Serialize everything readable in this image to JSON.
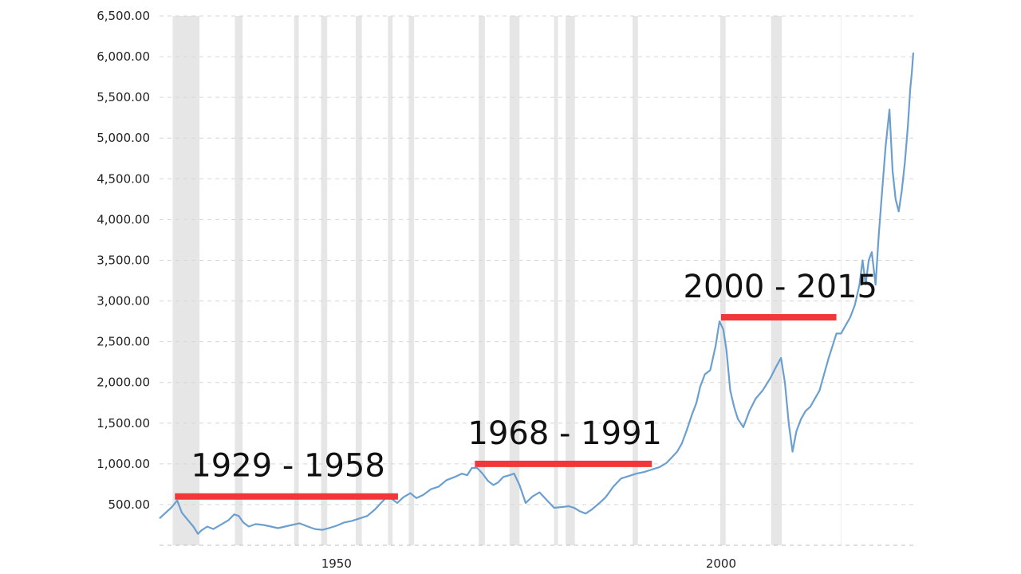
{
  "chart_data": {
    "type": "line",
    "title": "",
    "xlabel": "",
    "ylabel": "",
    "xlim": [
      1927,
      2025
    ],
    "ylim": [
      0,
      6500
    ],
    "y_ticks": [
      500,
      1000,
      1500,
      2000,
      2500,
      3000,
      3500,
      4000,
      4500,
      5000,
      5500,
      6000,
      6500
    ],
    "y_tick_labels": [
      "500.00",
      "1,000.00",
      "1,500.00",
      "2,000.00",
      "2,500.00",
      "3,000.00",
      "3,500.00",
      "4,000.00",
      "4,500.00",
      "5,000.00",
      "5,500.00",
      "6,000.00",
      "6,500.00"
    ],
    "x_ticks": [
      1950,
      2000
    ],
    "x_tick_labels": [
      "1950",
      "2000"
    ],
    "grid": true,
    "legend": "none",
    "line_color": "#6a9fd0",
    "recession_band_color": "#e6e6e6",
    "annotation_color": "#f0383a",
    "recessions": [
      [
        1928.7,
        1932.2
      ],
      [
        1936.8,
        1937.8
      ],
      [
        1944.5,
        1945.1
      ],
      [
        1948.0,
        1948.8
      ],
      [
        1952.5,
        1953.3
      ],
      [
        1956.7,
        1957.3
      ],
      [
        1959.4,
        1960.1
      ],
      [
        1968.5,
        1969.3
      ],
      [
        1972.5,
        1973.8
      ],
      [
        1978.3,
        1978.8
      ],
      [
        1979.8,
        1981.0
      ],
      [
        1988.5,
        1989.2
      ],
      [
        1999.9,
        2000.6
      ],
      [
        2006.5,
        2007.9
      ]
    ],
    "series": [
      {
        "x": [
          1927.0,
          1927.8,
          1928.5,
          1929.3,
          1929.9,
          1930.6,
          1931.4,
          1932.0,
          1932.4,
          1933.2,
          1934.0,
          1935.1,
          1936.0,
          1936.7,
          1937.3,
          1937.9,
          1938.6,
          1939.5,
          1940.5,
          1941.5,
          1942.4,
          1943.3,
          1944.2,
          1945.2,
          1946.3,
          1947.2,
          1948.2,
          1949.0,
          1950.0,
          1951.0,
          1952.0,
          1953.0,
          1954.0,
          1955.0,
          1955.8,
          1956.5,
          1957.2,
          1957.9,
          1958.7,
          1959.6,
          1960.4,
          1961.3,
          1962.3,
          1963.3,
          1964.3,
          1965.4,
          1966.3,
          1967.0,
          1967.6,
          1968.3,
          1969.0,
          1969.7,
          1970.4,
          1971.0,
          1971.7,
          1972.5,
          1973.1,
          1973.8,
          1974.6,
          1975.5,
          1976.4,
          1977.3,
          1978.3,
          1979.3,
          1980.2,
          1980.9,
          1981.6,
          1982.4,
          1983.2,
          1984.2,
          1985.0,
          1986.0,
          1987.0,
          1988.0,
          1989.0,
          1990.0,
          1991.0,
          1992.0,
          1992.9,
          1993.6,
          1994.3,
          1994.9,
          1995.5,
          1996.2,
          1996.8,
          1997.3,
          1997.9,
          1998.6,
          1999.3,
          1999.8,
          2000.3,
          2000.7,
          2001.2,
          2001.7,
          2002.2,
          2002.9,
          2003.7,
          2004.5,
          2005.4,
          2006.4,
          2007.2,
          2007.8,
          2008.3,
          2008.8,
          2009.3,
          2009.8,
          2010.4,
          2011.0,
          2011.6,
          2012.2,
          2012.8,
          2013.4,
          2014.0,
          2014.5,
          2015.0,
          2015.6,
          2016.2,
          2016.8,
          2017.4,
          2018.0,
          2018.4,
          2018.8,
          2019.2,
          2019.6,
          2020.1,
          2020.5,
          2020.9,
          2021.4,
          2021.9,
          2022.3,
          2022.7,
          2023.1,
          2023.5,
          2023.9,
          2024.3,
          2024.6,
          2024.8,
          2025.0
        ],
        "y": [
          330,
          400,
          460,
          550,
          400,
          320,
          230,
          140,
          180,
          230,
          200,
          260,
          310,
          380,
          360,
          280,
          230,
          260,
          250,
          230,
          210,
          230,
          250,
          270,
          230,
          200,
          190,
          210,
          240,
          280,
          300,
          330,
          360,
          440,
          520,
          590,
          570,
          520,
          590,
          640,
          580,
          620,
          690,
          720,
          800,
          840,
          880,
          860,
          950,
          950,
          880,
          790,
          740,
          770,
          840,
          860,
          880,
          740,
          520,
          600,
          650,
          560,
          460,
          470,
          480,
          460,
          420,
          390,
          440,
          520,
          590,
          720,
          820,
          850,
          880,
          900,
          930,
          960,
          1010,
          1080,
          1150,
          1250,
          1400,
          1600,
          1750,
          1950,
          2100,
          2150,
          2450,
          2750,
          2650,
          2400,
          1900,
          1700,
          1550,
          1450,
          1650,
          1800,
          1900,
          2050,
          2200,
          2300,
          2000,
          1500,
          1150,
          1400,
          1550,
          1650,
          1700,
          1800,
          1900,
          2100,
          2300,
          2450,
          2600,
          2600,
          2700,
          2800,
          2950,
          3200,
          3500,
          3200,
          3500,
          3600,
          3200,
          3800,
          4300,
          4900,
          5350,
          4600,
          4250,
          4100,
          4350,
          4700,
          5150,
          5600,
          5800,
          6050
        ]
      }
    ],
    "annotations": [
      {
        "label": "1929 - 1958",
        "x_start": 1929,
        "x_end": 1958,
        "y": 600
      },
      {
        "label": "1968 - 1991",
        "x_start": 1968,
        "x_end": 1991,
        "y": 1000
      },
      {
        "label": "2000 - 2015",
        "x_start": 2000,
        "x_end": 2015,
        "y": 2800
      }
    ]
  }
}
